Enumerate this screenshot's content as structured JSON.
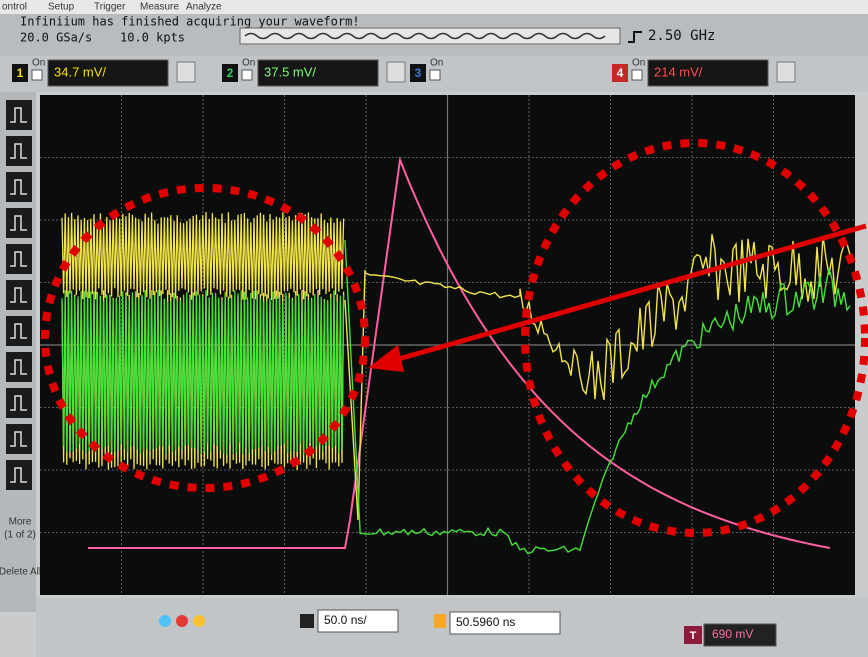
{
  "menu": [
    "ontrol",
    "Setup",
    "Trigger",
    "Measure",
    "Analyze"
  ],
  "status": {
    "message": "Infiniium has finished acquiring your waveform!",
    "sample_rate": "20.0 GSa/s",
    "points": "10.0 kpts",
    "bandwidth": "2.50 GHz"
  },
  "channels": [
    {
      "number": "1",
      "state": "On",
      "scale": "34.7 mV/"
    },
    {
      "number": "2",
      "state": "On",
      "scale": "37.5 mV/"
    },
    {
      "number": "3",
      "state": "On"
    },
    {
      "number": "4",
      "state": "On",
      "scale": "214 mV/"
    }
  ],
  "side_buttons": {
    "more": "More",
    "more_page": "(1 of 2)",
    "delete": "Delete All"
  },
  "timebase": {
    "scale": "50.0 ns/",
    "delay": "50.5960 ns"
  },
  "trigger": {
    "label": "T",
    "level": "690 mV"
  }
}
